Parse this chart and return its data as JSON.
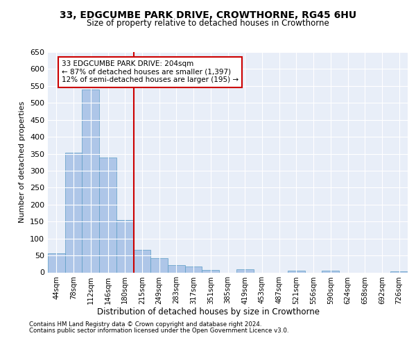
{
  "title_line1": "33, EDGCUMBE PARK DRIVE, CROWTHORNE, RG45 6HU",
  "title_line2": "Size of property relative to detached houses in Crowthorne",
  "xlabel": "Distribution of detached houses by size in Crowthorne",
  "ylabel": "Number of detached properties",
  "footnote1": "Contains HM Land Registry data © Crown copyright and database right 2024.",
  "footnote2": "Contains public sector information licensed under the Open Government Licence v3.0.",
  "annotation_line1": "33 EDGCUMBE PARK DRIVE: 204sqm",
  "annotation_line2": "← 87% of detached houses are smaller (1,397)",
  "annotation_line3": "12% of semi-detached houses are larger (195) →",
  "vline_x": 4.5,
  "bar_color": "#aec6e8",
  "bar_edge_color": "#5a9cc5",
  "vline_color": "#cc0000",
  "annotation_box_color": "#cc0000",
  "background_color": "#e8eef8",
  "categories": [
    "44sqm",
    "78sqm",
    "112sqm",
    "146sqm",
    "180sqm",
    "215sqm",
    "249sqm",
    "283sqm",
    "317sqm",
    "351sqm",
    "385sqm",
    "419sqm",
    "453sqm",
    "487sqm",
    "521sqm",
    "556sqm",
    "590sqm",
    "624sqm",
    "658sqm",
    "692sqm",
    "726sqm"
  ],
  "values": [
    57,
    353,
    540,
    338,
    155,
    67,
    42,
    22,
    17,
    8,
    0,
    10,
    0,
    0,
    5,
    0,
    5,
    0,
    0,
    0,
    3
  ],
  "ylim": [
    0,
    650
  ],
  "yticks": [
    0,
    50,
    100,
    150,
    200,
    250,
    300,
    350,
    400,
    450,
    500,
    550,
    600,
    650
  ]
}
